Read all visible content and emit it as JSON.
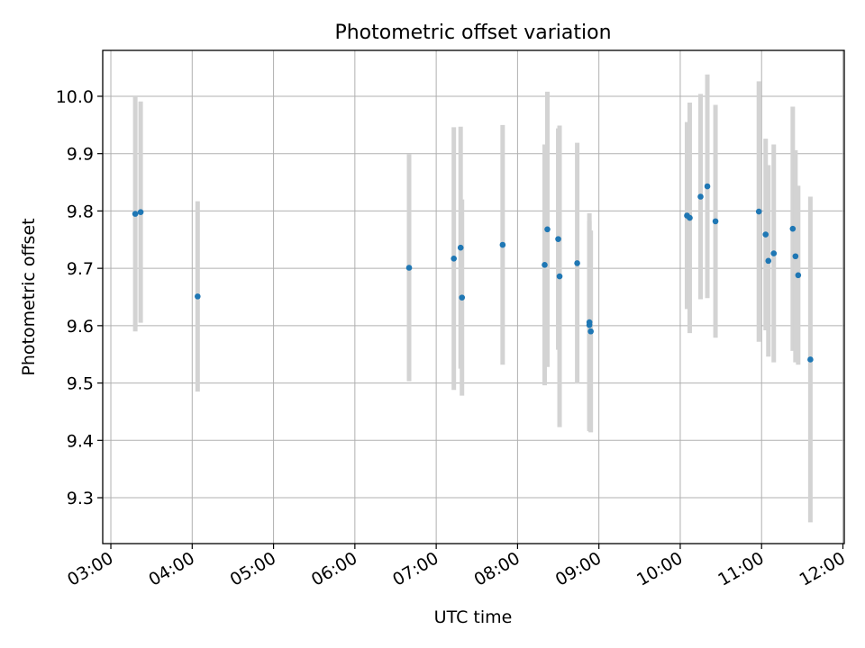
{
  "chart_data": {
    "type": "scatter",
    "title": "Photometric offset variation",
    "xlabel": "UTC time",
    "ylabel": "Photometric offset",
    "x_ticks": [
      "03:00",
      "04:00",
      "05:00",
      "06:00",
      "07:00",
      "08:00",
      "09:00",
      "10:00",
      "11:00",
      "12:00"
    ],
    "y_ticks": [
      "9.3",
      "9.4",
      "9.5",
      "9.6",
      "9.7",
      "9.8",
      "9.9",
      "10.0"
    ],
    "xlim": [
      "02:54",
      "12:01"
    ],
    "ylim": [
      9.22,
      10.08
    ],
    "grid": true,
    "colors": {
      "point": "#1f77b4",
      "errorbar": "#d3d3d3",
      "grid": "#b0b0b0"
    },
    "points": [
      {
        "time": "03:18",
        "y": 9.795,
        "err": 0.205
      },
      {
        "time": "03:22",
        "y": 9.798,
        "err": 0.193
      },
      {
        "time": "04:04",
        "y": 9.651,
        "err": 0.166
      },
      {
        "time": "06:40",
        "y": 9.701,
        "err": 0.198
      },
      {
        "time": "07:13",
        "y": 9.717,
        "err": 0.229
      },
      {
        "time": "07:18",
        "y": 9.736,
        "err": 0.211
      },
      {
        "time": "07:19",
        "y": 9.649,
        "err": 0.171
      },
      {
        "time": "07:49",
        "y": 9.741,
        "err": 0.209
      },
      {
        "time": "08:20",
        "y": 9.706,
        "err": 0.21
      },
      {
        "time": "08:22",
        "y": 9.768,
        "err": 0.24
      },
      {
        "time": "08:30",
        "y": 9.751,
        "err": 0.193
      },
      {
        "time": "08:31",
        "y": 9.686,
        "err": 0.263
      },
      {
        "time": "08:44",
        "y": 9.709,
        "err": 0.21
      },
      {
        "time": "08:53",
        "y": 9.606,
        "err": 0.19
      },
      {
        "time": "08:53",
        "y": 9.601,
        "err": 0.182
      },
      {
        "time": "08:54",
        "y": 9.59,
        "err": 0.176
      },
      {
        "time": "10:05",
        "y": 9.792,
        "err": 0.163
      },
      {
        "time": "10:07",
        "y": 9.788,
        "err": 0.201
      },
      {
        "time": "10:15",
        "y": 9.825,
        "err": 0.179
      },
      {
        "time": "10:20",
        "y": 9.843,
        "err": 0.195
      },
      {
        "time": "10:26",
        "y": 9.782,
        "err": 0.203
      },
      {
        "time": "10:58",
        "y": 9.799,
        "err": 0.227
      },
      {
        "time": "11:03",
        "y": 9.759,
        "err": 0.167
      },
      {
        "time": "11:05",
        "y": 9.713,
        "err": 0.167
      },
      {
        "time": "11:09",
        "y": 9.726,
        "err": 0.19
      },
      {
        "time": "11:23",
        "y": 9.769,
        "err": 0.213
      },
      {
        "time": "11:25",
        "y": 9.721,
        "err": 0.185
      },
      {
        "time": "11:27",
        "y": 9.688,
        "err": 0.156
      },
      {
        "time": "11:36",
        "y": 9.541,
        "err": 0.284
      }
    ]
  }
}
